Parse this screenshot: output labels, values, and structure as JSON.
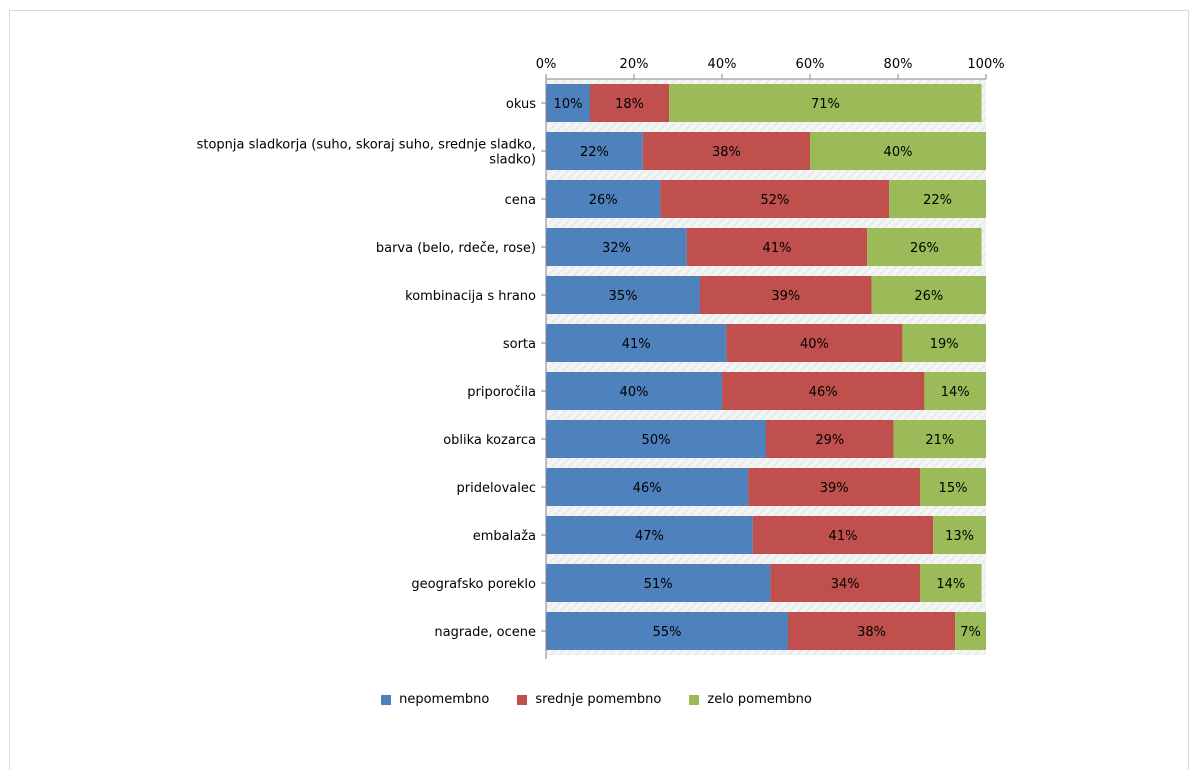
{
  "chart_data": {
    "type": "bar",
    "orientation": "horizontal",
    "stacked": true,
    "percent_stacked": true,
    "categories": [
      "okus",
      "stopnja sladkorja (suho, skoraj suho, srednje sladko, sladko)",
      "cena",
      "barva (belo, rdeče, rose)",
      "kombinacija s hrano",
      "sorta",
      "priporočila",
      "oblika kozarca",
      "pridelovalec",
      "embalaža",
      "geografsko poreklo",
      "nagrade, ocene"
    ],
    "category_lines": [
      [
        "okus"
      ],
      [
        "stopnja sladkorja (suho, skoraj suho, srednje sladko,",
        "sladko)"
      ],
      [
        "cena"
      ],
      [
        "barva (belo, rdeče, rose)"
      ],
      [
        "kombinacija s hrano"
      ],
      [
        "sorta"
      ],
      [
        "priporočila"
      ],
      [
        "oblika kozarca"
      ],
      [
        "pridelovalec"
      ],
      [
        "embalaža"
      ],
      [
        "geografsko poreklo"
      ],
      [
        "nagrade, ocene"
      ]
    ],
    "series": [
      {
        "name": "nepomembno",
        "color": "#4f81bd",
        "values": [
          10,
          22,
          26,
          32,
          35,
          41,
          40,
          50,
          46,
          47,
          51,
          55
        ]
      },
      {
        "name": "srednje pomembno",
        "color": "#c0504d",
        "values": [
          18,
          38,
          52,
          41,
          39,
          40,
          46,
          29,
          39,
          41,
          34,
          38
        ]
      },
      {
        "name": "zelo pomembno",
        "color": "#9bbb59",
        "values": [
          71,
          40,
          22,
          26,
          26,
          19,
          14,
          21,
          15,
          13,
          14,
          7
        ]
      }
    ],
    "xlim": [
      0,
      100
    ],
    "x_ticks": [
      "0%",
      "20%",
      "40%",
      "60%",
      "80%",
      "100%"
    ],
    "x_tick_values": [
      0,
      20,
      40,
      60,
      80,
      100
    ],
    "x_axis_position": "top",
    "legend_position": "bottom",
    "grid": false,
    "title": "",
    "xlabel": "",
    "ylabel": ""
  }
}
